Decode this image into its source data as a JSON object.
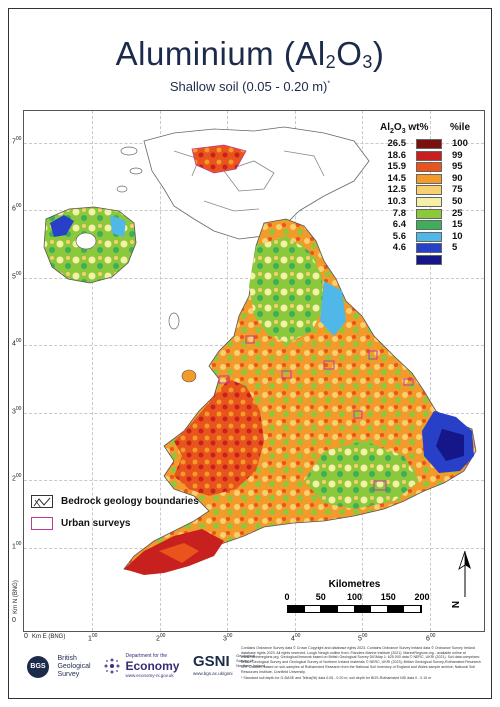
{
  "title": {
    "main": "Aluminium (Al",
    "sub": "2",
    "main_end": "O",
    "sub2": "3",
    "close": ")"
  },
  "subtitle": {
    "text": "Shallow soil (0.05 - 0.20 m)",
    "mark": "*"
  },
  "legend": {
    "col_a_prefix": "Al",
    "col_a_sub1": "2",
    "col_a_mid": "O",
    "col_a_sub2": "3",
    "col_a_suffix": " wt%",
    "col_b": "%ile",
    "rows": [
      {
        "value": "26.5",
        "pct": "100",
        "color": "#7a1010"
      },
      {
        "value": "18.6",
        "pct": "99",
        "color": "#c8201e"
      },
      {
        "value": "15.9",
        "pct": "95",
        "color": "#e8541c"
      },
      {
        "value": "14.5",
        "pct": "90",
        "color": "#f39a2a"
      },
      {
        "value": "12.5",
        "pct": "75",
        "color": "#f7d070"
      },
      {
        "value": "10.3",
        "pct": "50",
        "color": "#f5f0a8"
      },
      {
        "value": "7.8",
        "pct": "25",
        "color": "#8cc83c"
      },
      {
        "value": "6.4",
        "pct": "15",
        "color": "#3fae5a"
      },
      {
        "value": "5.6",
        "pct": "10",
        "color": "#4fb8e8"
      },
      {
        "value": "4.6",
        "pct": "5",
        "color": "#2840c8"
      },
      {
        "value": "",
        "pct": "",
        "color": "#14168a"
      }
    ]
  },
  "boundaries": {
    "bedrock": "Bedrock geology boundaries",
    "urban": "Urban surveys",
    "urban_color": "#c0399a"
  },
  "scale": {
    "title": "Kilometres",
    "ticks": [
      "0",
      "50",
      "100",
      "150",
      "200"
    ]
  },
  "north": "N",
  "axes": {
    "y": [
      "7",
      "6",
      "5",
      "4",
      "3",
      "2",
      "1",
      "0"
    ],
    "y_sup": "00",
    "x": [
      "0",
      "1",
      "2",
      "3",
      "4",
      "5",
      "6"
    ],
    "x_sup": "00",
    "x_unit": "Km E (BNG)",
    "y_unit": "Km N (BNG)"
  },
  "footer": {
    "bgs": {
      "badge": "BGS",
      "line1": "British",
      "line2": "Geological",
      "line3": "Survey"
    },
    "economy": {
      "small": "Department for the",
      "big": "Economy",
      "url": "www.economy-ni.gov.uk"
    },
    "gsni": {
      "big": "GSNI",
      "small1": "Geological",
      "small2": "Survey of",
      "small3": "Northern Ireland",
      "url": "www.bgs.ac.uk/gsni"
    },
    "credits": "Contains Ordnance Survey data © Crown Copyright and database rights 2023. Contains Ordnance Survey Ireland data © Ordnance Survey Ireland database rights 2023. All rights reserved. Lough Neagh outline from: Flanders Marine Institute (2021). MarineRegions.org - available online at www.marineregions.org. Geological linework based on British Geological Survey DiGMap 1: 625 000 data © NERC, UKRI (2021). Soil data comprises: British Geological Survey and Geological Survey of Northern Ireland materials © NERC, UKRI (2023); British Geological Survey-Rothamsted Research XRF Dataset, based on sub-samples at Rothamsted Research from the National Soil Inventory of England and Wales sample archive; National Soil Resources Institute, Cranfield University.",
    "footnote": "* Standard soil depth for G-BASE and Tellus(NI) data 0.05 - 0.20 m; soil depth for BGS-Rothamsted NSI data 0 - 0.15 m"
  }
}
